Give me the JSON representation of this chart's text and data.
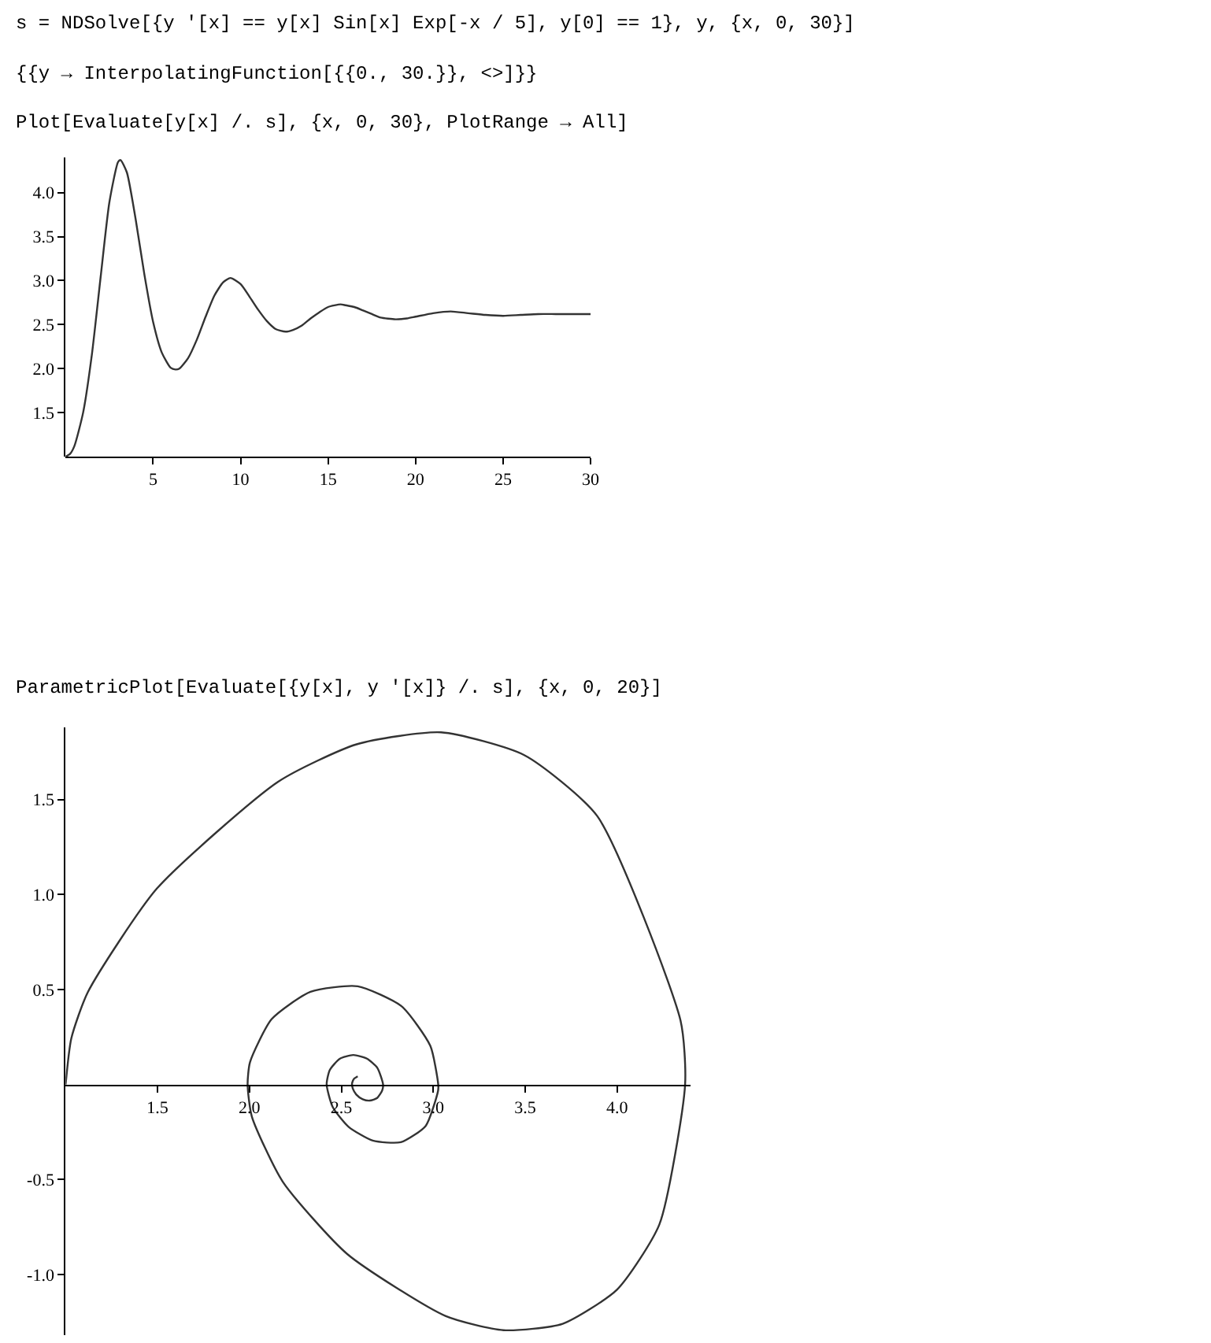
{
  "chart_data": [
    {
      "type": "line",
      "title": "s = NDSolve[{y '[x] == y[x] Sin[x] Exp[-x / 5], y[0] == 1}, y, {x, 0, 30}]",
      "subtitle": "{{y → InterpolatingFunction[{{0., 30.}}, <>]}}",
      "annotations": [
        "Plot[Evaluate[y[x] /. s], {x, 0, 30}, PlotRange → All]"
      ],
      "x": [
        0,
        0.25,
        0.5,
        1,
        1.5,
        2,
        2.5,
        3,
        3.14,
        3.5,
        4,
        4.5,
        5,
        5.5,
        6,
        6.28,
        6.5,
        7,
        7.5,
        8,
        8.5,
        9,
        9.42,
        10,
        10.5,
        11,
        11.5,
        12,
        12.57,
        13,
        13.5,
        14,
        14.5,
        15,
        15.71,
        16,
        16.5,
        17,
        17.5,
        18,
        18.85,
        19.5,
        20,
        21,
        22,
        23,
        24,
        25,
        26,
        27,
        28,
        29,
        30
      ],
      "series": [
        {
          "color": "#333333",
          "values": [
            1,
            1.03,
            1.12,
            1.5,
            2.16,
            3.04,
            3.89,
            4.35,
            4.37,
            4.23,
            3.7,
            3.07,
            2.53,
            2.18,
            2.01,
            1.99,
            2.0,
            2.12,
            2.33,
            2.59,
            2.83,
            2.98,
            3.03,
            2.96,
            2.82,
            2.67,
            2.54,
            2.45,
            2.42,
            2.44,
            2.49,
            2.57,
            2.64,
            2.7,
            2.73,
            2.72,
            2.7,
            2.66,
            2.62,
            2.58,
            2.56,
            2.57,
            2.59,
            2.63,
            2.65,
            2.63,
            2.61,
            2.6,
            2.61,
            2.62,
            2.62,
            2.62,
            2.62
          ]
        }
      ],
      "xlim": [
        0,
        30
      ],
      "ylim": [
        1,
        4.4
      ],
      "xticks": [
        5,
        10,
        15,
        20,
        25,
        30
      ],
      "yticks": [
        1.5,
        {
          "value": 2,
          "label": "2.0"
        },
        2.5,
        {
          "value": 3,
          "label": "3.0"
        },
        3.5,
        {
          "value": 4,
          "label": "4.0"
        }
      ]
    },
    {
      "type": "line",
      "title": "ParametricPlot[Evaluate[{y[x], y '[x]} /. s], {x, 0, 20}]",
      "x": [
        1,
        1.031,
        1.121,
        1.497,
        2.158,
        2.583,
        3.042,
        3.495,
        3.892,
        4.345,
        4.37,
        4.23,
        4.0,
        3.704,
        3.382,
        3.066,
        2.532,
        2.181,
        2.013,
        1.99,
        2.003,
        2.121,
        2.332,
        2.589,
        2.827,
        2.984,
        3.027,
        3.026,
        2.959,
        2.824,
        2.671,
        2.539,
        2.453,
        2.42,
        2.437,
        2.491,
        2.565,
        2.639,
        2.696,
        2.727,
        2.722,
        2.695,
        2.655,
        2.616,
        2.581,
        2.562,
        2.558,
        2.559,
        2.57,
        2.589
      ],
      "series": [
        {
          "color": "#333333",
          "values": [
            0,
            0.243,
            0.486,
            1.032,
            1.595,
            1.791,
            1.854,
            1.734,
            1.413,
            0.337,
            0,
            -0.737,
            -1.08,
            -1.26,
            -1.294,
            -1.219,
            -0.893,
            -0.512,
            -0.169,
            0,
            0.117,
            0.344,
            0.488,
            0.517,
            0.412,
            0.203,
            0,
            -0.034,
            -0.218,
            -0.304,
            -0.296,
            -0.223,
            -0.119,
            0,
            0.076,
            0.135,
            0.155,
            0.136,
            0.087,
            0,
            -0.032,
            -0.071,
            -0.085,
            -0.078,
            -0.053,
            -0.021,
            0,
            0.009,
            0.031,
            0.043
          ]
        }
      ],
      "xlim": [
        1,
        4.4
      ],
      "ylim": [
        -1.32,
        1.88
      ],
      "xticks": [
        1.5,
        {
          "value": 2,
          "label": "2.0"
        },
        2.5,
        {
          "value": 3,
          "label": "3.0"
        },
        3.5,
        {
          "value": 4,
          "label": "4.0"
        }
      ],
      "yticks": [
        {
          "value": -1,
          "label": "-1.0"
        },
        -0.5,
        0.5,
        {
          "value": 1,
          "label": "1.0"
        },
        1.5
      ]
    }
  ]
}
